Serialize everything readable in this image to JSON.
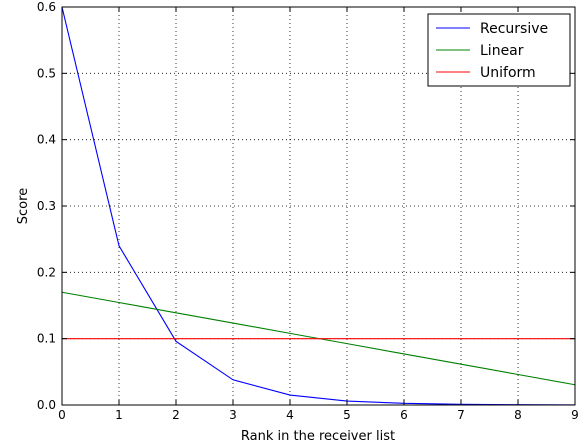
{
  "chart_data": {
    "type": "line",
    "xlabel": "Rank in the receiver list",
    "ylabel": "Score",
    "xlim": [
      0,
      9
    ],
    "ylim": [
      0,
      0.6
    ],
    "xticks": [
      "0",
      "1",
      "2",
      "3",
      "4",
      "5",
      "6",
      "7",
      "8",
      "9"
    ],
    "yticks": [
      "0.0",
      "0.1",
      "0.2",
      "0.3",
      "0.4",
      "0.5",
      "0.6"
    ],
    "grid": true,
    "legend_position": "top-right",
    "x": [
      0,
      1,
      2,
      3,
      4,
      5,
      6,
      7,
      8,
      9
    ],
    "series": [
      {
        "name": "Recursive",
        "color": "#0000ff",
        "values": [
          0.6,
          0.24,
          0.096,
          0.038,
          0.015,
          0.006,
          0.0025,
          0.001,
          0.0004,
          0.0002
        ]
      },
      {
        "name": "Linear",
        "color": "#008000",
        "values": [
          0.17,
          0.1545,
          0.139,
          0.1235,
          0.108,
          0.0925,
          0.077,
          0.0615,
          0.046,
          0.0305
        ]
      },
      {
        "name": "Uniform",
        "color": "#ff0000",
        "values": [
          0.1,
          0.1,
          0.1,
          0.1,
          0.1,
          0.1,
          0.1,
          0.1,
          0.1,
          0.1
        ]
      }
    ]
  }
}
